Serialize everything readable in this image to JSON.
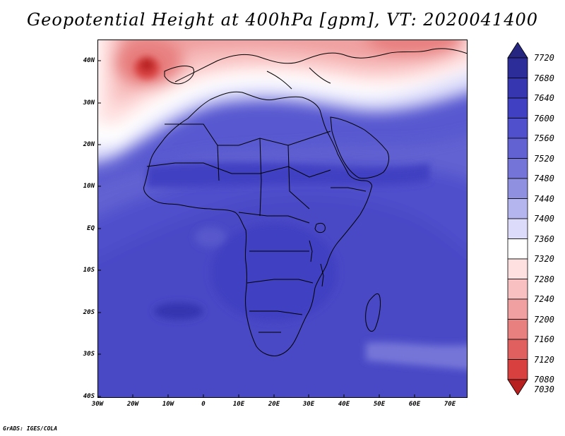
{
  "title": "Geopotential Height at 400hPa [gpm], VT: 2020041400",
  "footer": "GrADS: IGES/COLA",
  "map": {
    "region": "Africa",
    "lat_labels": [
      "40N",
      "30N",
      "20N",
      "10N",
      "EQ",
      "10S",
      "20S",
      "30S",
      "40S"
    ],
    "lon_labels": [
      "30W",
      "20W",
      "10W",
      "0",
      "10E",
      "20E",
      "30E",
      "40E",
      "50E",
      "60E",
      "70E"
    ]
  },
  "colorbar": {
    "levels": [
      "7720",
      "7680",
      "7640",
      "7600",
      "7560",
      "7520",
      "7480",
      "7440",
      "7400",
      "7360",
      "7320",
      "7280",
      "7240",
      "7200",
      "7160",
      "7120",
      "7080",
      "7030"
    ],
    "colors": [
      "#262680",
      "#2d2d9a",
      "#3636b0",
      "#4040c2",
      "#5050cc",
      "#6262d2",
      "#7474d8",
      "#9090e0",
      "#b4b4ee",
      "#dcdcfa",
      "#ffffff",
      "#ffe0e0",
      "#f8c0c0",
      "#f0a0a0",
      "#e88080",
      "#e06060",
      "#d84040",
      "#b82020"
    ]
  }
}
